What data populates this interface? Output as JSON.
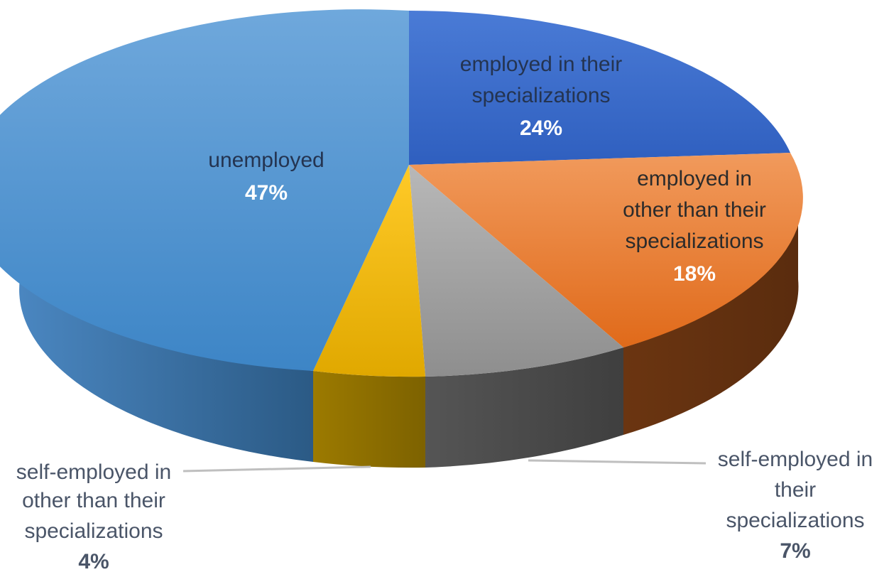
{
  "chart_data": {
    "type": "pie",
    "style": "3d",
    "title": "",
    "slices": [
      {
        "label": "employed in their specializations",
        "value": 24,
        "value_label": "24%",
        "color": "#3f6fd0"
      },
      {
        "label": "employed in other than their specializations",
        "value": 18,
        "value_label": "18%",
        "color": "#ed7d31"
      },
      {
        "label": "self-employed in their specializations",
        "value": 7,
        "value_label": "7%",
        "color": "#a5a5a5"
      },
      {
        "label": "self-employed in other than their specializations",
        "value": 4,
        "value_label": "4%",
        "color": "#ffc000"
      },
      {
        "label": "unemployed",
        "value": 47,
        "value_label": "47%",
        "color": "#5b9bd5"
      }
    ],
    "legend": "none",
    "data_labels": "on-slice and callouts"
  },
  "labels": {
    "s0_line1": "employed in their",
    "s0_line2": "specializations",
    "s1_line1": "employed in",
    "s1_line2": "other than their",
    "s1_line3": "specializations",
    "s2_line1": "self-employed in",
    "s2_line2": "their",
    "s2_line3": "specializations",
    "s3_line1": "self-employed in",
    "s3_line2": "other than their",
    "s3_line3": "specializations",
    "s4_line1": "unemployed"
  }
}
